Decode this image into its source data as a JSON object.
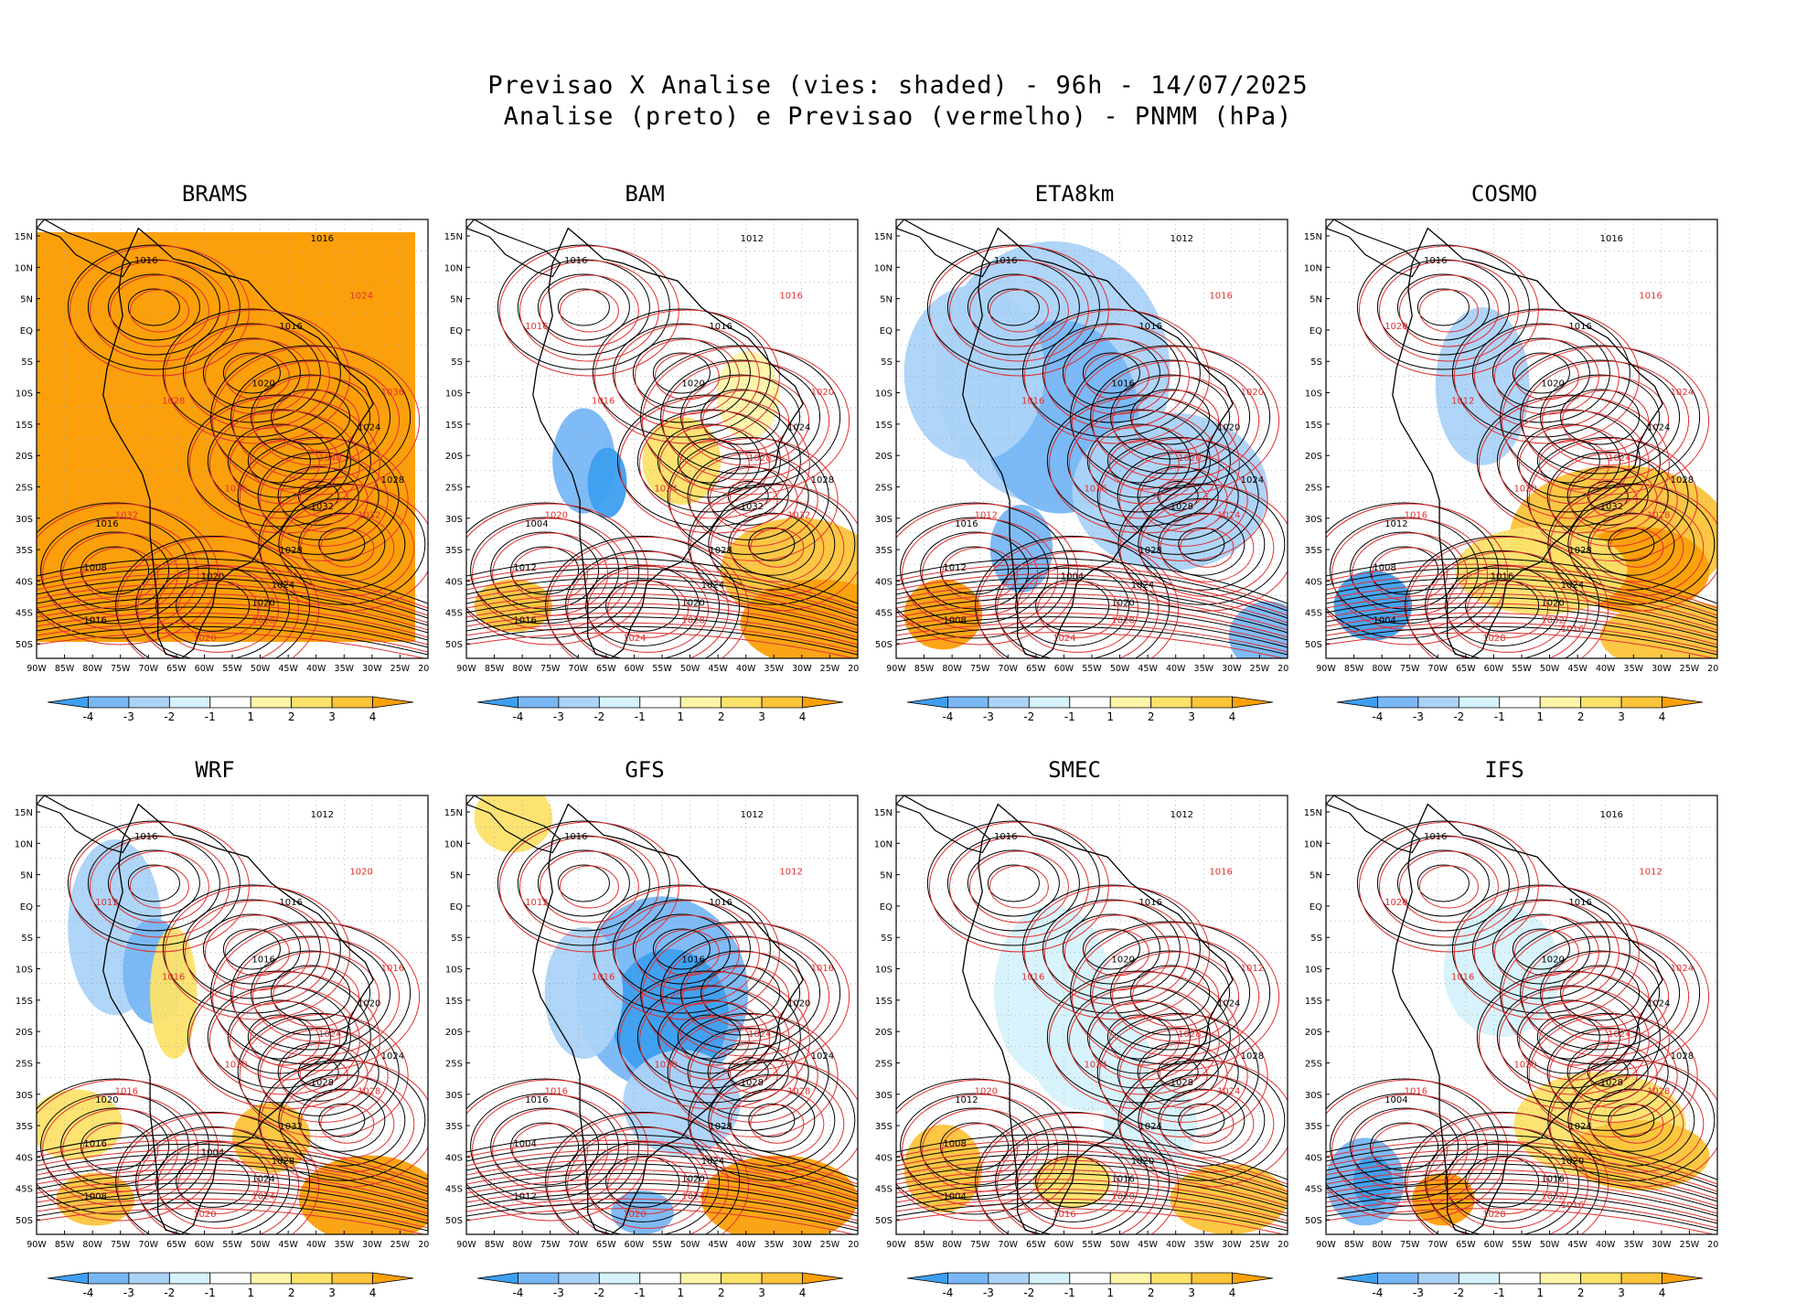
{
  "title": {
    "line1": "Previsao X Analise (vies: shaded) - 96h - 14/07/2025",
    "line2": "Analise (preto) e Previsao (vermelho) - PNMM (hPa)"
  },
  "latitude_labels": [
    "15N",
    "10N",
    "5N",
    "EQ",
    "5S",
    "10S",
    "15S",
    "20S",
    "25S",
    "30S",
    "35S",
    "40S",
    "45S",
    "50S"
  ],
  "longitude_labels": [
    "90W",
    "85W",
    "80W",
    "75W",
    "70W",
    "65W",
    "60W",
    "55W",
    "50W",
    "45W",
    "40W",
    "35W",
    "30W",
    "25W",
    "20W"
  ],
  "colorbar": {
    "labels": [
      "-4",
      "-3",
      "-2",
      "-1",
      "1",
      "2",
      "3",
      "4"
    ],
    "colors": [
      "#3e9ff0",
      "#78b7f5",
      "#abd3f8",
      "#d6f2fb",
      "#ffffff",
      "#fff5a9",
      "#fde26a",
      "#fcc43a",
      "#fba00a"
    ]
  },
  "colors": {
    "analysis_contour": "#000000",
    "forecast_contour": "#e03030",
    "coastline": "#000000"
  },
  "panels": [
    {
      "model": "BRAMS",
      "bias": "warm-uniform",
      "labels_black": [
        "1016",
        "1016",
        "1016",
        "1020",
        "1024",
        "1028",
        "1032",
        "1028",
        "1024",
        "1020",
        "1016",
        "1008",
        "1016",
        "1020"
      ],
      "labels_red": [
        "1024",
        "1028",
        "1032",
        "1036",
        "1040",
        "1032",
        "1028",
        "1020",
        "1036"
      ]
    },
    {
      "model": "BAM",
      "bias": "mixed-warm",
      "labels_black": [
        "1012",
        "1016",
        "1016",
        "1020",
        "1024",
        "1028",
        "1032",
        "1028",
        "1024",
        "1020",
        "1004",
        "1012",
        "1016"
      ],
      "labels_red": [
        "1016",
        "1016",
        "1020",
        "1024",
        "1028",
        "1032",
        "1028",
        "1024",
        "1020",
        "1016"
      ]
    },
    {
      "model": "ETA8km",
      "bias": "cold",
      "labels_black": [
        "1012",
        "1016",
        "1016",
        "1016",
        "1020",
        "1024",
        "1028",
        "1028",
        "1024",
        "1020",
        "1016",
        "1012",
        "1008",
        "1004"
      ],
      "labels_red": [
        "1016",
        "1016",
        "1012",
        "1016",
        "1020",
        "1024",
        "1028",
        "1024",
        "1020"
      ]
    },
    {
      "model": "COSMO",
      "bias": "warm-south",
      "labels_black": [
        "1016",
        "1016",
        "1016",
        "1020",
        "1024",
        "1028",
        "1032",
        "1028",
        "1024",
        "1020",
        "1012",
        "1008",
        "1004",
        "1016"
      ],
      "labels_red": [
        "1016",
        "1012",
        "1016",
        "1020",
        "1024",
        "1028",
        "1032",
        "1028",
        "1024",
        "1020",
        "1016"
      ]
    },
    {
      "model": "WRF",
      "bias": "mixed",
      "labels_black": [
        "1012",
        "1016",
        "1016",
        "1016",
        "1020",
        "1024",
        "1028",
        "1032",
        "1028",
        "1024",
        "1020",
        "1016",
        "1008",
        "1004"
      ],
      "labels_red": [
        "1020",
        "1016",
        "1016",
        "1020",
        "1024",
        "1028",
        "1024",
        "1020",
        "1016",
        "1012"
      ]
    },
    {
      "model": "GFS",
      "bias": "cold-center",
      "labels_black": [
        "1012",
        "1016",
        "1016",
        "1016",
        "1020",
        "1024",
        "1028",
        "1028",
        "1024",
        "1020",
        "1016",
        "1004",
        "1012"
      ],
      "labels_red": [
        "1012",
        "1016",
        "1016",
        "1020",
        "1024",
        "1028",
        "1024",
        "1020",
        "1016",
        "1012"
      ]
    },
    {
      "model": "SMEC",
      "bias": "mixed-light",
      "labels_black": [
        "1012",
        "1016",
        "1016",
        "1020",
        "1024",
        "1028",
        "1028",
        "1024",
        "1020",
        "1016",
        "1012",
        "1008",
        "1004"
      ],
      "labels_red": [
        "1016",
        "1016",
        "1020",
        "1024",
        "1028",
        "1024",
        "1020",
        "1016",
        "1012"
      ]
    },
    {
      "model": "IFS",
      "bias": "warm-south-light",
      "labels_black": [
        "1016",
        "1016",
        "1016",
        "1020",
        "1024",
        "1028",
        "1028",
        "1024",
        "1020",
        "1016",
        "1004"
      ],
      "labels_red": [
        "1012",
        "1016",
        "1016",
        "1020",
        "1024",
        "1028",
        "1032",
        "1028",
        "1024",
        "1020",
        "1016"
      ]
    }
  ]
}
